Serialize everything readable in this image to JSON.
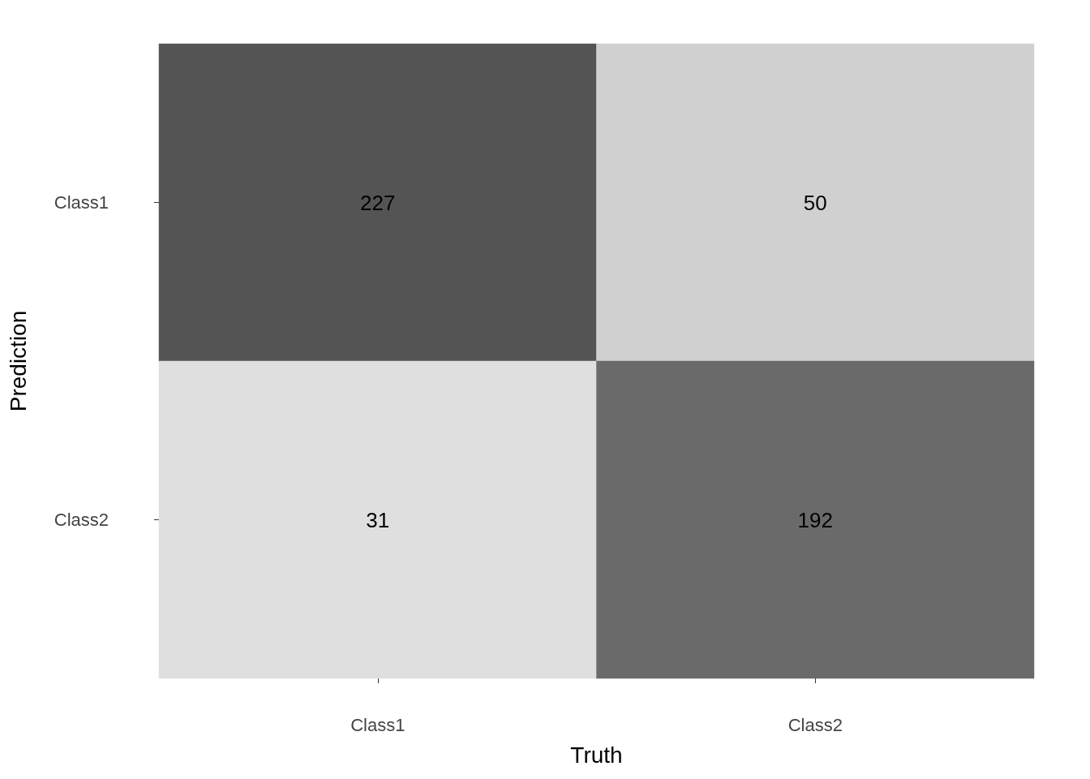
{
  "chart_data": {
    "type": "heatmap",
    "xlabel": "Truth",
    "ylabel": "Prediction",
    "categories": [
      "Class1",
      "Class2"
    ],
    "y_categories": [
      "Class1",
      "Class2"
    ],
    "cells": [
      [
        227,
        50
      ],
      [
        31,
        192
      ]
    ],
    "colors": [
      "#545454",
      "#d0d0d0",
      "#dfdfdf",
      "#6a6a6a"
    ],
    "data_labels": true
  }
}
